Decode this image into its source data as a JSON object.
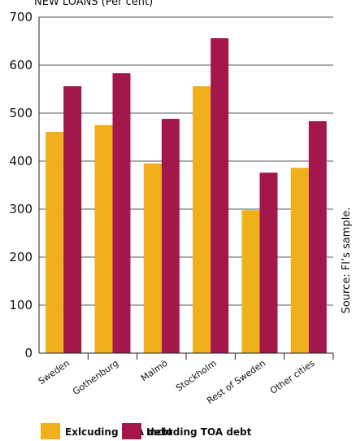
{
  "chart_data": {
    "type": "bar",
    "title": "NEW LOANS (Per cent)",
    "categories": [
      "Sweden",
      "Gothenburg",
      "Malmö",
      "Stockholm",
      "Rest of Sweden",
      "Other cities"
    ],
    "series": [
      {
        "name": "Exlcuding TOA debt",
        "color": "#f0b01c",
        "values": [
          461,
          475,
          395,
          556,
          298,
          386
        ]
      },
      {
        "name": "Including TOA debt",
        "color": "#a3174d",
        "values": [
          556,
          583,
          488,
          656,
          376,
          483
        ]
      }
    ],
    "ylim": [
      0,
      700
    ],
    "yticks": [
      0,
      100,
      200,
      300,
      400,
      500,
      600,
      700
    ],
    "grid": true,
    "source": "Source: FI’s sample."
  }
}
